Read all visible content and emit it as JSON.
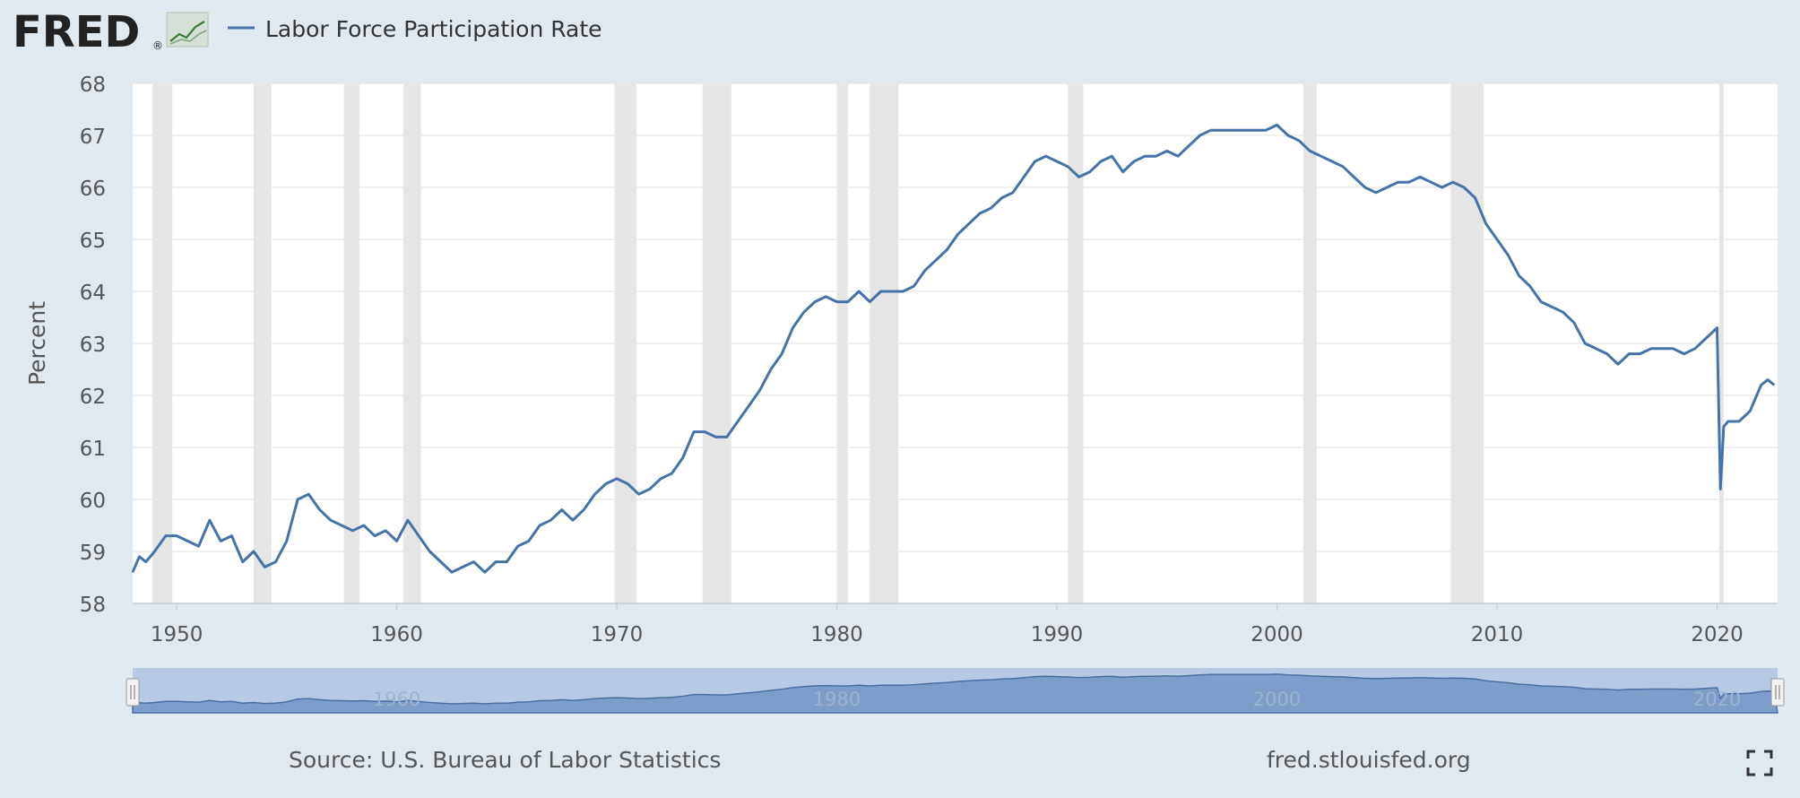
{
  "logo": {
    "text": "FRED",
    "registered": "®"
  },
  "legend": {
    "label": "Labor Force Participation Rate",
    "color": "#4572a7"
  },
  "navigator": {
    "labels": [
      "1960",
      "1980",
      "2000",
      "2020"
    ]
  },
  "footer": {
    "source": "Source: U.S. Bureau of Labor Statistics",
    "site": "fred.stlouisfed.org"
  },
  "colors": {
    "background": "#e1e9f0",
    "line": "#4572a7",
    "recession": "#e5e5e5",
    "navigator_fill": "#7f9dcb",
    "navigator_bg": "#b8c9e3"
  },
  "icons": {
    "logo_chart": "line-chart-icon",
    "fullscreen": "fullscreen-icon"
  },
  "chart_data": {
    "type": "line",
    "title": "",
    "xlabel": "",
    "ylabel": "Percent",
    "xlim": [
      1948.0,
      2022.75
    ],
    "ylim": [
      58,
      68
    ],
    "yticks": [
      58,
      59,
      60,
      61,
      62,
      63,
      64,
      65,
      66,
      67,
      68
    ],
    "xticks": [
      "1950",
      "1960",
      "1970",
      "1980",
      "1990",
      "2000",
      "2010",
      "2020"
    ],
    "grid": true,
    "legend_position": "top-left",
    "recessions": [
      [
        1948.9,
        1949.8
      ],
      [
        1953.5,
        1954.3
      ],
      [
        1957.6,
        1958.3
      ],
      [
        1960.3,
        1961.1
      ],
      [
        1969.9,
        1970.9
      ],
      [
        1973.9,
        1975.2
      ],
      [
        1980.0,
        1980.5
      ],
      [
        1981.5,
        1982.8
      ],
      [
        1990.5,
        1991.2
      ],
      [
        2001.2,
        2001.8
      ],
      [
        2007.9,
        2009.4
      ],
      [
        2020.1,
        2020.3
      ]
    ],
    "series": [
      {
        "name": "Labor Force Participation Rate",
        "x": [
          1948.0,
          1948.3,
          1948.6,
          1949.0,
          1949.5,
          1950.0,
          1950.5,
          1951.0,
          1951.5,
          1952.0,
          1952.5,
          1953.0,
          1953.5,
          1954.0,
          1954.5,
          1955.0,
          1955.5,
          1956.0,
          1956.5,
          1957.0,
          1957.5,
          1958.0,
          1958.5,
          1959.0,
          1959.5,
          1960.0,
          1960.5,
          1961.0,
          1961.5,
          1962.0,
          1962.5,
          1963.0,
          1963.5,
          1964.0,
          1964.5,
          1965.0,
          1965.5,
          1966.0,
          1966.5,
          1967.0,
          1967.5,
          1968.0,
          1968.5,
          1969.0,
          1969.5,
          1970.0,
          1970.5,
          1971.0,
          1971.5,
          1972.0,
          1972.5,
          1973.0,
          1973.5,
          1974.0,
          1974.5,
          1975.0,
          1975.5,
          1976.0,
          1976.5,
          1977.0,
          1977.5,
          1978.0,
          1978.5,
          1979.0,
          1979.5,
          1980.0,
          1980.5,
          1981.0,
          1981.5,
          1982.0,
          1982.5,
          1983.0,
          1983.5,
          1984.0,
          1984.5,
          1985.0,
          1985.5,
          1986.0,
          1986.5,
          1987.0,
          1987.5,
          1988.0,
          1988.5,
          1989.0,
          1989.5,
          1990.0,
          1990.5,
          1991.0,
          1991.5,
          1992.0,
          1992.5,
          1993.0,
          1993.5,
          1994.0,
          1994.5,
          1995.0,
          1995.5,
          1996.0,
          1996.5,
          1997.0,
          1997.5,
          1998.0,
          1998.5,
          1999.0,
          1999.5,
          2000.0,
          2000.5,
          2001.0,
          2001.5,
          2002.0,
          2002.5,
          2003.0,
          2003.5,
          2004.0,
          2004.5,
          2005.0,
          2005.5,
          2006.0,
          2006.5,
          2007.0,
          2007.5,
          2008.0,
          2008.5,
          2009.0,
          2009.5,
          2010.0,
          2010.5,
          2011.0,
          2011.5,
          2012.0,
          2012.5,
          2013.0,
          2013.5,
          2014.0,
          2014.5,
          2015.0,
          2015.5,
          2016.0,
          2016.5,
          2017.0,
          2017.5,
          2018.0,
          2018.5,
          2019.0,
          2019.5,
          2020.0,
          2020.15,
          2020.3,
          2020.5,
          2021.0,
          2021.5,
          2022.0,
          2022.3,
          2022.6
        ],
        "values": [
          58.6,
          58.9,
          58.8,
          59.0,
          59.3,
          59.3,
          59.2,
          59.1,
          59.6,
          59.2,
          59.3,
          58.8,
          59.0,
          58.7,
          58.8,
          59.2,
          60.0,
          60.1,
          59.8,
          59.6,
          59.5,
          59.4,
          59.5,
          59.3,
          59.4,
          59.2,
          59.6,
          59.3,
          59.0,
          58.8,
          58.6,
          58.7,
          58.8,
          58.6,
          58.8,
          58.8,
          59.1,
          59.2,
          59.5,
          59.6,
          59.8,
          59.6,
          59.8,
          60.1,
          60.3,
          60.4,
          60.3,
          60.1,
          60.2,
          60.4,
          60.5,
          60.8,
          61.3,
          61.3,
          61.2,
          61.2,
          61.5,
          61.8,
          62.1,
          62.5,
          62.8,
          63.3,
          63.6,
          63.8,
          63.9,
          63.8,
          63.8,
          64.0,
          63.8,
          64.0,
          64.0,
          64.0,
          64.1,
          64.4,
          64.6,
          64.8,
          65.1,
          65.3,
          65.5,
          65.6,
          65.8,
          65.9,
          66.2,
          66.5,
          66.6,
          66.5,
          66.4,
          66.2,
          66.3,
          66.5,
          66.6,
          66.3,
          66.5,
          66.6,
          66.6,
          66.7,
          66.6,
          66.8,
          67.0,
          67.1,
          67.1,
          67.1,
          67.1,
          67.1,
          67.1,
          67.2,
          67.0,
          66.9,
          66.7,
          66.6,
          66.5,
          66.4,
          66.2,
          66.0,
          65.9,
          66.0,
          66.1,
          66.1,
          66.2,
          66.1,
          66.0,
          66.1,
          66.0,
          65.8,
          65.3,
          65.0,
          64.7,
          64.3,
          64.1,
          63.8,
          63.7,
          63.6,
          63.4,
          63.0,
          62.9,
          62.8,
          62.6,
          62.8,
          62.8,
          62.9,
          62.9,
          62.9,
          62.8,
          62.9,
          63.1,
          63.3,
          60.2,
          61.4,
          61.5,
          61.5,
          61.7,
          62.2,
          62.3,
          62.2
        ]
      }
    ]
  }
}
